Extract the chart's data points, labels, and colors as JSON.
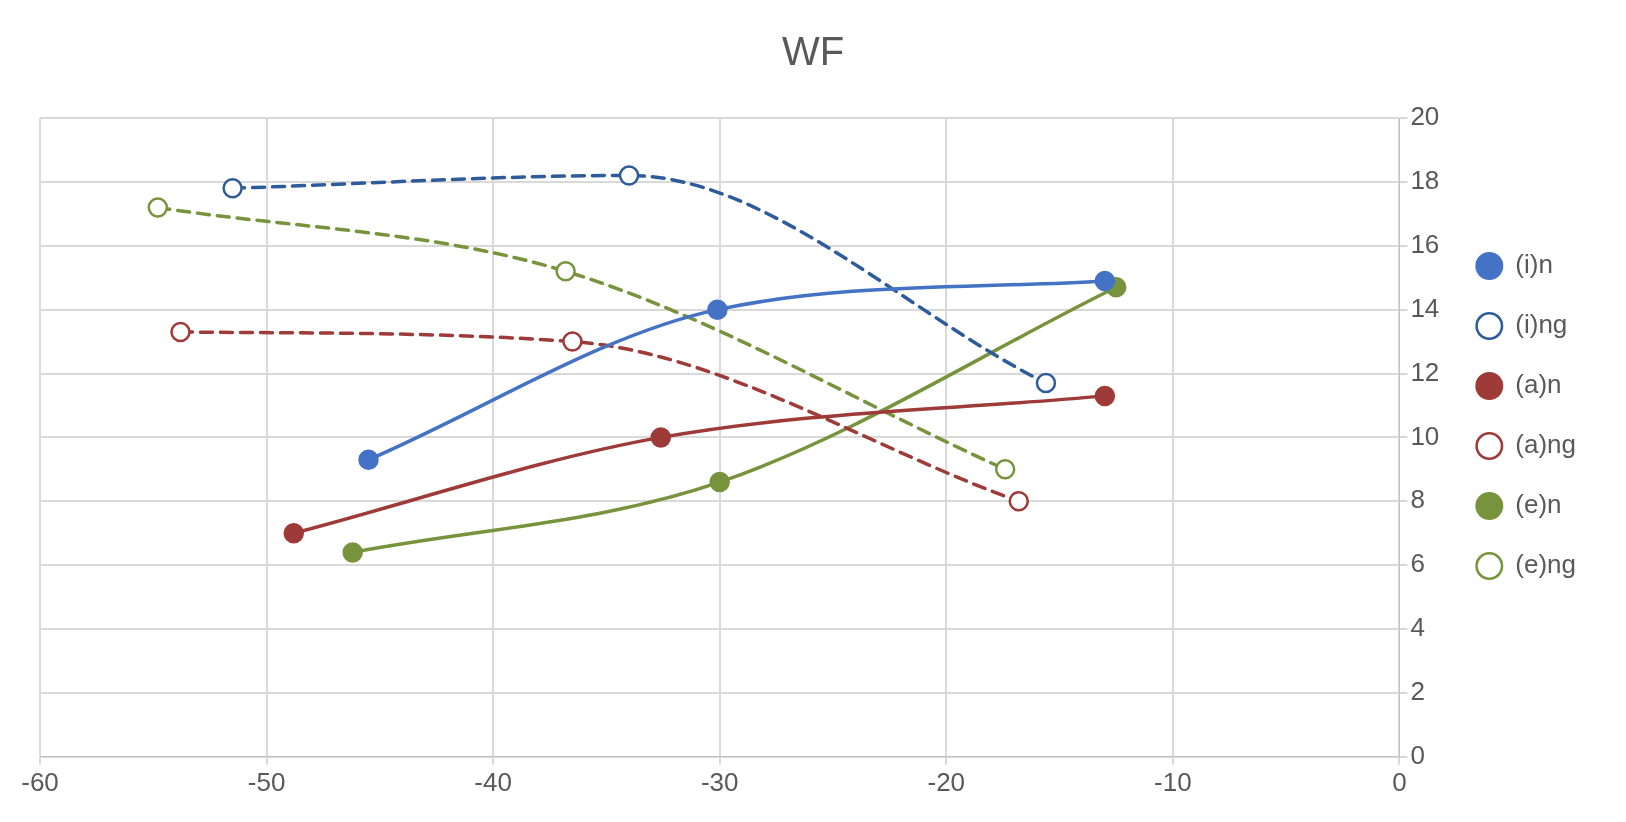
{
  "chart_data": {
    "type": "line",
    "title": "WF",
    "xlim": [
      -60,
      0
    ],
    "xticks": [
      -60,
      -50,
      -40,
      -30,
      -20,
      -10,
      0
    ],
    "ylim": [
      0,
      20
    ],
    "yticks": [
      0,
      2,
      4,
      6,
      8,
      10,
      12,
      14,
      16,
      18,
      20
    ],
    "grid": true,
    "legend": "right",
    "marker": "circle",
    "series": [
      {
        "name": "(i)n",
        "color": "#4472c4",
        "line_style": "solid",
        "x": [
          -45.5,
          -30.1,
          -13.0
        ],
        "values": [
          9.3,
          14.0,
          14.9
        ]
      },
      {
        "name": "(i)ng",
        "color": "#2e5c9a",
        "line_style": "dashed",
        "x": [
          -51.5,
          -34.0,
          -15.6
        ],
        "values": [
          17.8,
          18.2,
          11.7
        ]
      },
      {
        "name": "(a)n",
        "color": "#9e3a38",
        "line_style": "solid",
        "x": [
          -48.8,
          -32.6,
          -13.0
        ],
        "values": [
          7.0,
          10.0,
          11.3
        ]
      },
      {
        "name": "(a)ng",
        "color": "#9e3a38",
        "line_style": "dashed",
        "x": [
          -53.8,
          -36.5,
          -16.8
        ],
        "values": [
          13.3,
          13.0,
          8.0
        ]
      },
      {
        "name": "(e)n",
        "color": "#77933c",
        "line_style": "solid",
        "x": [
          -46.2,
          -30.0,
          -12.5
        ],
        "values": [
          6.4,
          8.6,
          14.7
        ]
      },
      {
        "name": "(e)ng",
        "color": "#77933c",
        "line_style": "dashed",
        "x": [
          -54.8,
          -36.8,
          -17.4
        ],
        "values": [
          17.2,
          15.2,
          9.0
        ]
      }
    ]
  }
}
